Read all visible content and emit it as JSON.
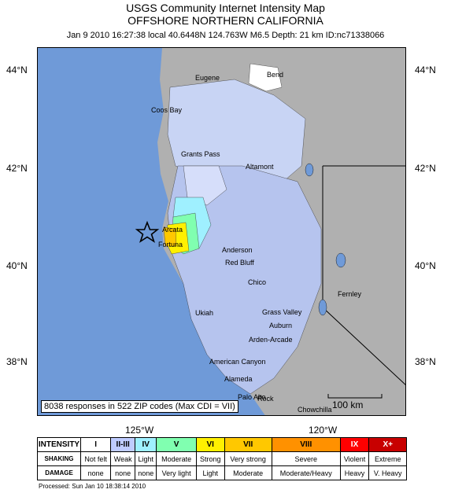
{
  "title_line1": "USGS Community Internet Intensity Map",
  "title_line2": "OFFSHORE NORTHERN CALIFORNIA",
  "subtitle": "Jan 9 2010 16:27:38 local 40.6448N 124.763W M6.5 Depth: 21 km ID:nc71338066",
  "lat_labels": [
    "44°N",
    "42°N",
    "40°N",
    "38°N"
  ],
  "lon_labels": [
    "125°W",
    "120°W"
  ],
  "responses": "8038 responses in 522 ZIP codes (Max CDI = VII)",
  "scale_label": "100 km",
  "cities": [
    "Eugene",
    "Bend",
    "Coos Bay",
    "Grants Pass",
    "Altamont",
    "Arcata",
    "Fortuna",
    "Anderson",
    "Red Bluff",
    "Chico",
    "Fernley",
    "Ukiah",
    "Grass Valley",
    "Auburn",
    "Arden-Arcade",
    "American Canyon",
    "Alameda",
    "Palo Alto",
    "Rock",
    "Chowchilla"
  ],
  "legend": {
    "intensity_label": "INTENSITY",
    "shaking_label": "SHAKING",
    "damage_label": "DAMAGE",
    "levels": [
      {
        "roman": "I",
        "shaking": "Not felt",
        "damage": "none",
        "color": "#ffffff"
      },
      {
        "roman": "II-III",
        "shaking": "Weak",
        "damage": "none",
        "color": "#bfccff"
      },
      {
        "roman": "IV",
        "shaking": "Light",
        "damage": "none",
        "color": "#9ff0ff"
      },
      {
        "roman": "V",
        "shaking": "Moderate",
        "damage": "Very light",
        "color": "#80ffb0"
      },
      {
        "roman": "VI",
        "shaking": "Strong",
        "damage": "Light",
        "color": "#fff000"
      },
      {
        "roman": "VII",
        "shaking": "Very strong",
        "damage": "Moderate",
        "color": "#ffc800"
      },
      {
        "roman": "VIII",
        "shaking": "Severe",
        "damage": "Moderate/Heavy",
        "color": "#ff9100"
      },
      {
        "roman": "IX",
        "shaking": "Violent",
        "damage": "Heavy",
        "color": "#ff0000"
      },
      {
        "roman": "X+",
        "shaking": "Extreme",
        "damage": "V. Heavy",
        "color": "#c80000"
      }
    ]
  },
  "processed": "Processed: Sun Jan 10 18:38:14 2010"
}
